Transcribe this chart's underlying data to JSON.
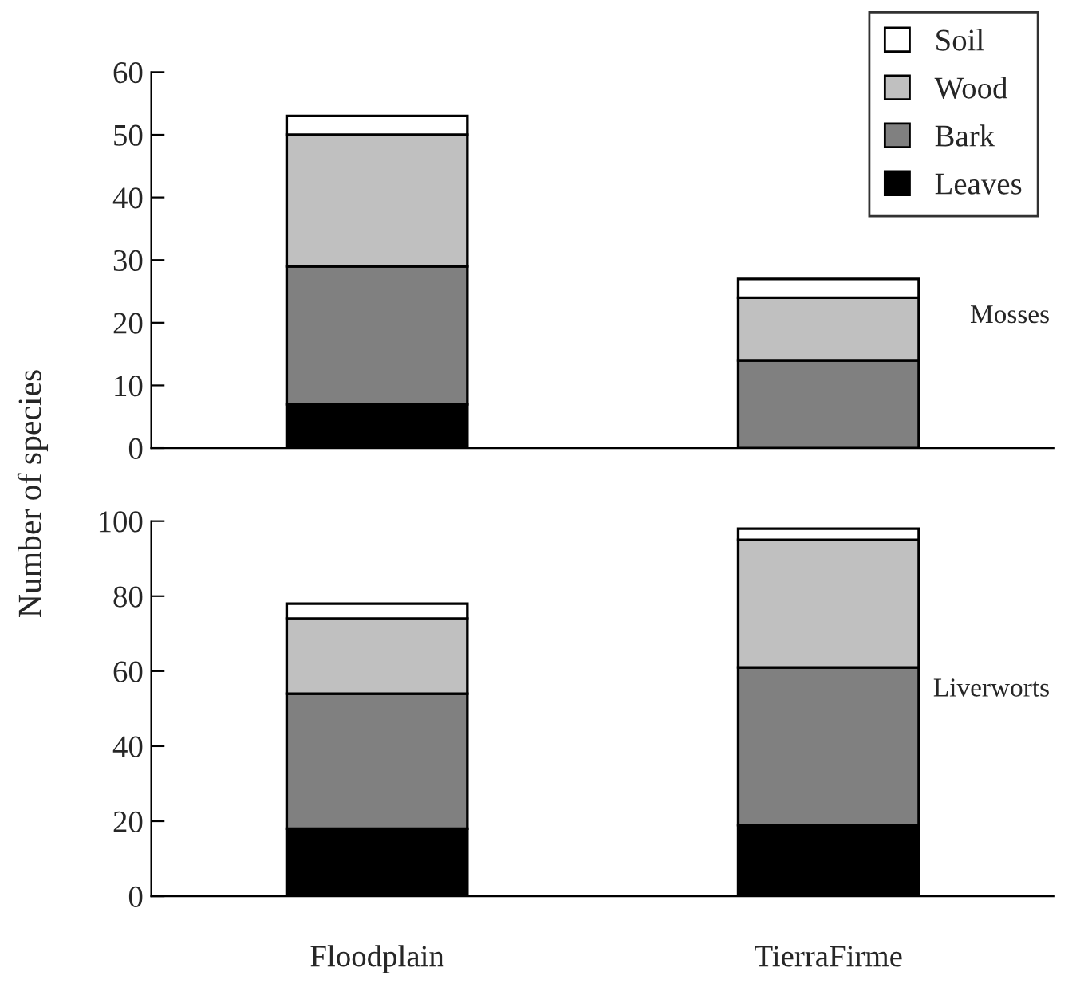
{
  "chart_data": [
    {
      "type": "bar",
      "stacked": true,
      "categories": [
        null,
        null
      ],
      "ylim": [
        0,
        60
      ],
      "yticks": [
        0,
        10,
        20,
        30,
        40,
        50,
        60
      ],
      "tick_labels": "y",
      "legend": "top right",
      "annotations": [
        "Mosses"
      ],
      "series": [
        {
          "name": "Leaves",
          "color": "#000000",
          "values": [
            7,
            0
          ]
        },
        {
          "name": "Bark",
          "color": "#808080",
          "values": [
            22,
            14
          ]
        },
        {
          "name": "Wood",
          "color": "#c0c0c0",
          "values": [
            21,
            10
          ]
        },
        {
          "name": "Soil",
          "color": "#ffffff",
          "values": [
            3,
            3
          ]
        }
      ]
    },
    {
      "type": "bar",
      "stacked": true,
      "categories": [
        "Floodplain",
        "TierraFirme"
      ],
      "ylim": [
        0,
        100
      ],
      "yticks": [
        0,
        20,
        40,
        60,
        80,
        100
      ],
      "ylabel": "Number of species",
      "annotations": [
        "Liverworts"
      ],
      "series": [
        {
          "color": "#000000",
          "values": [
            18,
            19
          ]
        },
        {
          "color": "#808080",
          "values": [
            36,
            42
          ]
        },
        {
          "color": "#c0c0c0",
          "values": [
            20,
            34
          ]
        },
        {
          "color": "#ffffff",
          "values": [
            4,
            3
          ]
        }
      ]
    }
  ]
}
